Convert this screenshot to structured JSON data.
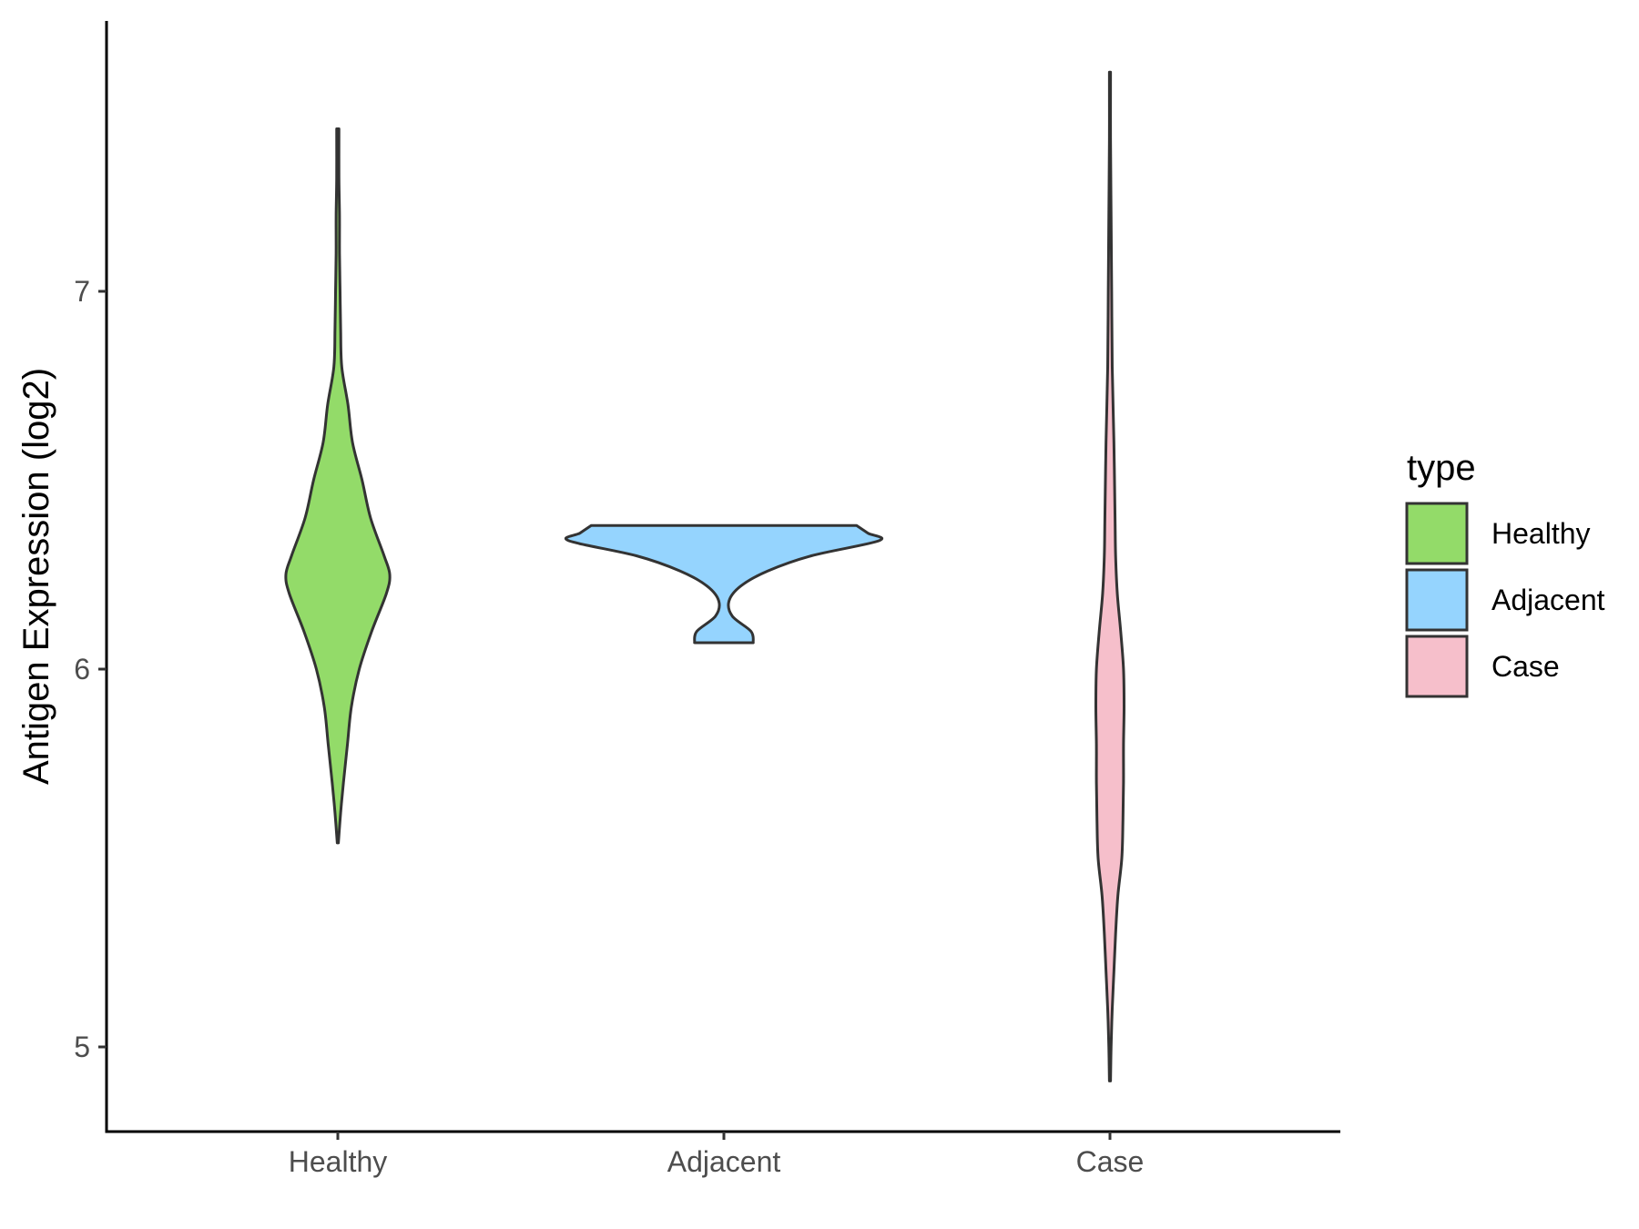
{
  "chart_data": {
    "type": "violin",
    "title": "",
    "xlabel": "",
    "ylabel": "Antigen Expression (log2)",
    "categories": [
      "Healthy",
      "Adjacent",
      "Case"
    ],
    "yticks": [
      "5",
      "6",
      "7"
    ],
    "ylim": [
      4.78,
      7.71
    ],
    "grid": false,
    "legend": {
      "title": "type",
      "position": "right",
      "entries": [
        {
          "label": "Healthy",
          "color": "#93DB69"
        },
        {
          "label": "Adjacent",
          "color": "#95D4FE"
        },
        {
          "label": "Case",
          "color": "#F6BFCB"
        }
      ]
    },
    "series": [
      {
        "category": "Healthy",
        "color": "#93DB69",
        "min": 5.54,
        "max": 7.43,
        "profile": [
          [
            5.54,
            0.01
          ],
          [
            5.62,
            0.05
          ],
          [
            5.7,
            0.1
          ],
          [
            5.8,
            0.17
          ],
          [
            5.9,
            0.24
          ],
          [
            6.0,
            0.38
          ],
          [
            6.1,
            0.6
          ],
          [
            6.2,
            0.86
          ],
          [
            6.25,
            0.92
          ],
          [
            6.3,
            0.82
          ],
          [
            6.4,
            0.58
          ],
          [
            6.5,
            0.43
          ],
          [
            6.6,
            0.26
          ],
          [
            6.7,
            0.18
          ],
          [
            6.8,
            0.07
          ],
          [
            6.9,
            0.05
          ],
          [
            7.0,
            0.04
          ],
          [
            7.1,
            0.03
          ],
          [
            7.2,
            0.03
          ],
          [
            7.3,
            0.02
          ],
          [
            7.43,
            0.02
          ]
        ]
      },
      {
        "category": "Adjacent",
        "color": "#95D4FE",
        "min": 6.07,
        "max": 6.38,
        "profile": [
          [
            6.07,
            0.52
          ],
          [
            6.1,
            0.48
          ],
          [
            6.14,
            0.15
          ],
          [
            6.18,
            0.09
          ],
          [
            6.22,
            0.3
          ],
          [
            6.26,
            0.78
          ],
          [
            6.3,
            1.55
          ],
          [
            6.34,
            2.75
          ],
          [
            6.36,
            2.55
          ],
          [
            6.38,
            2.35
          ]
        ]
      },
      {
        "category": "Case",
        "color": "#F6BFCB",
        "min": 4.91,
        "max": 7.58,
        "profile": [
          [
            4.91,
            0.01
          ],
          [
            5.0,
            0.02
          ],
          [
            5.1,
            0.04
          ],
          [
            5.2,
            0.07
          ],
          [
            5.3,
            0.1
          ],
          [
            5.4,
            0.14
          ],
          [
            5.5,
            0.21
          ],
          [
            5.6,
            0.23
          ],
          [
            5.7,
            0.24
          ],
          [
            5.8,
            0.24
          ],
          [
            5.9,
            0.25
          ],
          [
            6.0,
            0.24
          ],
          [
            6.1,
            0.19
          ],
          [
            6.2,
            0.13
          ],
          [
            6.3,
            0.1
          ],
          [
            6.4,
            0.09
          ],
          [
            6.6,
            0.07
          ],
          [
            6.8,
            0.04
          ],
          [
            7.0,
            0.03
          ],
          [
            7.2,
            0.02
          ],
          [
            7.4,
            0.01
          ],
          [
            7.58,
            0.01
          ]
        ]
      }
    ]
  }
}
